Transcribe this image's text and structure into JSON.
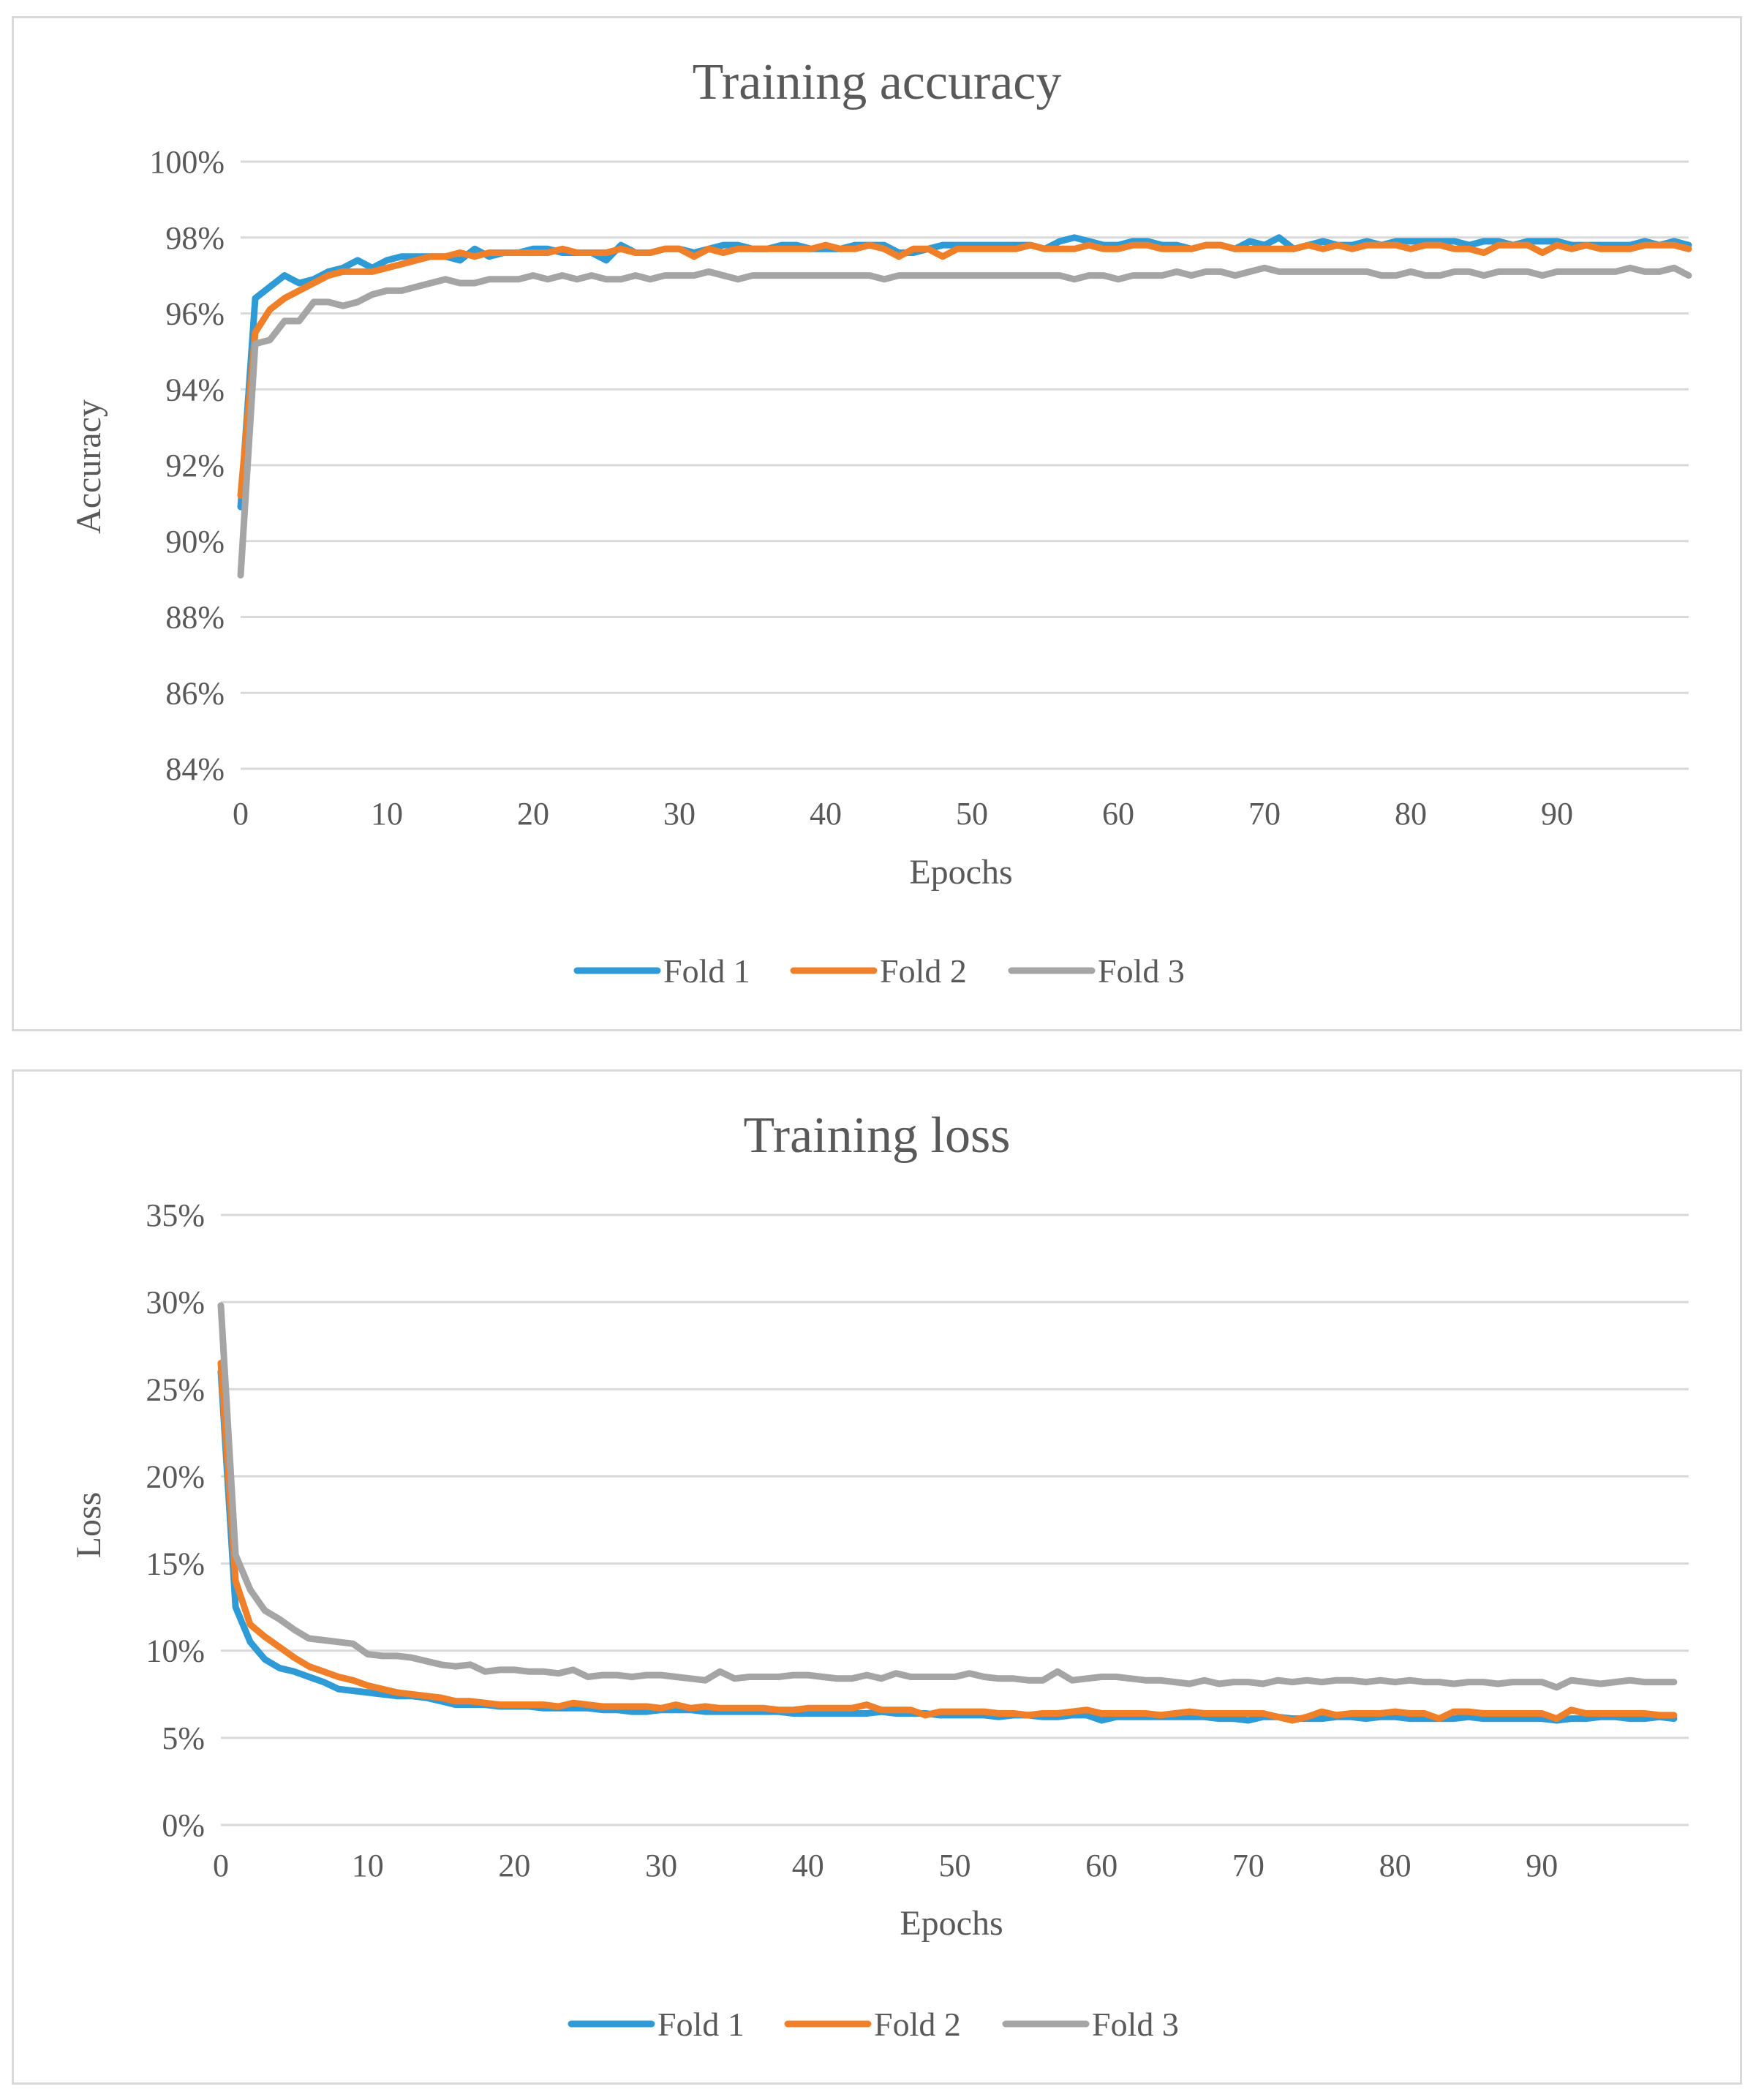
{
  "chart_data": [
    {
      "id": "accuracy",
      "type": "line",
      "title": "Training accuracy",
      "xlabel": "Epochs",
      "ylabel": "Accuracy",
      "ylim": [
        0.84,
        1.0
      ],
      "yticks": [
        0.84,
        0.86,
        0.88,
        0.9,
        0.92,
        0.94,
        0.96,
        0.98,
        1.0
      ],
      "ytick_labels": [
        "84%",
        "86%",
        "88%",
        "90%",
        "92%",
        "94%",
        "96%",
        "98%",
        "100%"
      ],
      "xlim": [
        0,
        99
      ],
      "xticks": [
        0,
        10,
        20,
        30,
        40,
        50,
        60,
        70,
        80,
        90
      ],
      "xtick_labels": [
        "0",
        "10",
        "20",
        "30",
        "40",
        "50",
        "60",
        "70",
        "80",
        "90"
      ],
      "grid": true,
      "legend_position": "bottom",
      "series": [
        {
          "name": "Fold 1",
          "color": "#2e9bd6",
          "values": [
            0.909,
            0.964,
            0.967,
            0.97,
            0.968,
            0.969,
            0.971,
            0.972,
            0.974,
            0.972,
            0.974,
            0.975,
            0.975,
            0.975,
            0.975,
            0.974,
            0.977,
            0.975,
            0.976,
            0.976,
            0.977,
            0.977,
            0.976,
            0.976,
            0.976,
            0.974,
            0.978,
            0.976,
            0.976,
            0.977,
            0.977,
            0.976,
            0.977,
            0.978,
            0.978,
            0.977,
            0.977,
            0.978,
            0.978,
            0.977,
            0.977,
            0.977,
            0.978,
            0.978,
            0.978,
            0.976,
            0.976,
            0.977,
            0.978,
            0.978,
            0.978,
            0.978,
            0.978,
            0.978,
            0.978,
            0.977,
            0.979,
            0.98,
            0.979,
            0.978,
            0.978,
            0.979,
            0.979,
            0.978,
            0.978,
            0.977,
            0.978,
            0.978,
            0.977,
            0.979,
            0.978,
            0.98,
            0.977,
            0.978,
            0.979,
            0.978,
            0.978,
            0.979,
            0.978,
            0.979,
            0.979,
            0.979,
            0.979,
            0.979,
            0.978,
            0.979,
            0.979,
            0.978,
            0.979,
            0.979,
            0.979,
            0.978,
            0.978,
            0.978,
            0.978,
            0.978,
            0.979,
            0.978,
            0.979,
            0.978
          ]
        },
        {
          "name": "Fold 2",
          "color": "#f07f2a",
          "values": [
            0.912,
            0.955,
            0.961,
            0.964,
            0.966,
            0.968,
            0.97,
            0.971,
            0.971,
            0.971,
            0.972,
            0.973,
            0.974,
            0.975,
            0.975,
            0.976,
            0.975,
            0.976,
            0.976,
            0.976,
            0.976,
            0.976,
            0.977,
            0.976,
            0.976,
            0.976,
            0.977,
            0.976,
            0.976,
            0.977,
            0.977,
            0.975,
            0.977,
            0.976,
            0.977,
            0.977,
            0.977,
            0.977,
            0.977,
            0.977,
            0.978,
            0.977,
            0.977,
            0.978,
            0.977,
            0.975,
            0.977,
            0.977,
            0.975,
            0.977,
            0.977,
            0.977,
            0.977,
            0.977,
            0.978,
            0.977,
            0.977,
            0.977,
            0.978,
            0.977,
            0.977,
            0.978,
            0.978,
            0.977,
            0.977,
            0.977,
            0.978,
            0.978,
            0.977,
            0.977,
            0.977,
            0.977,
            0.977,
            0.978,
            0.977,
            0.978,
            0.977,
            0.978,
            0.978,
            0.978,
            0.977,
            0.978,
            0.978,
            0.977,
            0.977,
            0.976,
            0.978,
            0.978,
            0.978,
            0.976,
            0.978,
            0.977,
            0.978,
            0.977,
            0.977,
            0.977,
            0.978,
            0.978,
            0.978,
            0.977
          ]
        },
        {
          "name": "Fold 3",
          "color": "#a5a5a5",
          "values": [
            0.891,
            0.952,
            0.953,
            0.958,
            0.958,
            0.963,
            0.963,
            0.962,
            0.963,
            0.965,
            0.966,
            0.966,
            0.967,
            0.968,
            0.969,
            0.968,
            0.968,
            0.969,
            0.969,
            0.969,
            0.97,
            0.969,
            0.97,
            0.969,
            0.97,
            0.969,
            0.969,
            0.97,
            0.969,
            0.97,
            0.97,
            0.97,
            0.971,
            0.97,
            0.969,
            0.97,
            0.97,
            0.97,
            0.97,
            0.97,
            0.97,
            0.97,
            0.97,
            0.97,
            0.969,
            0.97,
            0.97,
            0.97,
            0.97,
            0.97,
            0.97,
            0.97,
            0.97,
            0.97,
            0.97,
            0.97,
            0.97,
            0.969,
            0.97,
            0.97,
            0.969,
            0.97,
            0.97,
            0.97,
            0.971,
            0.97,
            0.971,
            0.971,
            0.97,
            0.971,
            0.972,
            0.971,
            0.971,
            0.971,
            0.971,
            0.971,
            0.971,
            0.971,
            0.97,
            0.97,
            0.971,
            0.97,
            0.97,
            0.971,
            0.971,
            0.97,
            0.971,
            0.971,
            0.971,
            0.97,
            0.971,
            0.971,
            0.971,
            0.971,
            0.971,
            0.972,
            0.971,
            0.971,
            0.972,
            0.97
          ]
        }
      ]
    },
    {
      "id": "loss",
      "type": "line",
      "title": "Training loss",
      "xlabel": "Epochs",
      "ylabel": "Loss",
      "ylim": [
        0,
        0.35
      ],
      "yticks": [
        0,
        0.05,
        0.1,
        0.15,
        0.2,
        0.25,
        0.3,
        0.35
      ],
      "ytick_labels": [
        "0%",
        "5%",
        "10%",
        "15%",
        "20%",
        "25%",
        "30%",
        "35%"
      ],
      "xlim": [
        0,
        100
      ],
      "xticks": [
        0,
        10,
        20,
        30,
        40,
        50,
        60,
        70,
        80,
        90
      ],
      "xtick_labels": [
        "0",
        "10",
        "20",
        "30",
        "40",
        "50",
        "60",
        "70",
        "80",
        "90"
      ],
      "grid": true,
      "legend_position": "bottom",
      "series": [
        {
          "name": "Fold 1",
          "color": "#2e9bd6",
          "values": [
            0.26,
            0.125,
            0.105,
            0.095,
            0.09,
            0.088,
            0.085,
            0.082,
            0.078,
            0.077,
            0.076,
            0.075,
            0.074,
            0.074,
            0.073,
            0.071,
            0.069,
            0.069,
            0.069,
            0.068,
            0.068,
            0.068,
            0.067,
            0.067,
            0.067,
            0.067,
            0.066,
            0.066,
            0.065,
            0.065,
            0.066,
            0.066,
            0.066,
            0.065,
            0.065,
            0.065,
            0.065,
            0.065,
            0.065,
            0.064,
            0.064,
            0.064,
            0.064,
            0.064,
            0.064,
            0.065,
            0.064,
            0.064,
            0.064,
            0.063,
            0.063,
            0.063,
            0.063,
            0.062,
            0.063,
            0.063,
            0.062,
            0.062,
            0.063,
            0.063,
            0.06,
            0.062,
            0.062,
            0.062,
            0.062,
            0.062,
            0.062,
            0.062,
            0.061,
            0.061,
            0.06,
            0.062,
            0.062,
            0.061,
            0.061,
            0.061,
            0.062,
            0.062,
            0.061,
            0.062,
            0.062,
            0.061,
            0.061,
            0.061,
            0.061,
            0.062,
            0.061,
            0.061,
            0.061,
            0.061,
            0.061,
            0.06,
            0.061,
            0.061,
            0.062,
            0.062,
            0.061,
            0.061,
            0.062,
            0.061
          ]
        },
        {
          "name": "Fold 2",
          "color": "#f07f2a",
          "values": [
            0.265,
            0.14,
            0.115,
            0.108,
            0.102,
            0.096,
            0.091,
            0.088,
            0.085,
            0.083,
            0.08,
            0.078,
            0.076,
            0.075,
            0.074,
            0.073,
            0.071,
            0.071,
            0.07,
            0.069,
            0.069,
            0.069,
            0.069,
            0.068,
            0.07,
            0.069,
            0.068,
            0.068,
            0.068,
            0.068,
            0.067,
            0.069,
            0.067,
            0.068,
            0.067,
            0.067,
            0.067,
            0.067,
            0.066,
            0.066,
            0.067,
            0.067,
            0.067,
            0.067,
            0.069,
            0.066,
            0.066,
            0.066,
            0.063,
            0.065,
            0.065,
            0.065,
            0.065,
            0.064,
            0.064,
            0.063,
            0.064,
            0.064,
            0.065,
            0.066,
            0.064,
            0.064,
            0.064,
            0.064,
            0.063,
            0.064,
            0.065,
            0.064,
            0.064,
            0.064,
            0.064,
            0.064,
            0.062,
            0.06,
            0.062,
            0.065,
            0.063,
            0.064,
            0.064,
            0.064,
            0.065,
            0.064,
            0.064,
            0.061,
            0.065,
            0.065,
            0.064,
            0.064,
            0.064,
            0.064,
            0.064,
            0.061,
            0.066,
            0.064,
            0.064,
            0.064,
            0.064,
            0.064,
            0.063,
            0.063
          ]
        },
        {
          "name": "Fold 3",
          "color": "#a5a5a5",
          "values": [
            0.298,
            0.155,
            0.135,
            0.123,
            0.118,
            0.112,
            0.107,
            0.106,
            0.105,
            0.104,
            0.098,
            0.097,
            0.097,
            0.096,
            0.094,
            0.092,
            0.091,
            0.092,
            0.088,
            0.089,
            0.089,
            0.088,
            0.088,
            0.087,
            0.089,
            0.085,
            0.086,
            0.086,
            0.085,
            0.086,
            0.086,
            0.085,
            0.084,
            0.083,
            0.088,
            0.084,
            0.085,
            0.085,
            0.085,
            0.086,
            0.086,
            0.085,
            0.084,
            0.084,
            0.086,
            0.084,
            0.087,
            0.085,
            0.085,
            0.085,
            0.085,
            0.087,
            0.085,
            0.084,
            0.084,
            0.083,
            0.083,
            0.088,
            0.083,
            0.084,
            0.085,
            0.085,
            0.084,
            0.083,
            0.083,
            0.082,
            0.081,
            0.083,
            0.081,
            0.082,
            0.082,
            0.081,
            0.083,
            0.082,
            0.083,
            0.082,
            0.083,
            0.083,
            0.082,
            0.083,
            0.082,
            0.083,
            0.082,
            0.082,
            0.081,
            0.082,
            0.082,
            0.081,
            0.082,
            0.082,
            0.082,
            0.079,
            0.083,
            0.082,
            0.081,
            0.082,
            0.083,
            0.082,
            0.082,
            0.082
          ]
        }
      ]
    }
  ]
}
